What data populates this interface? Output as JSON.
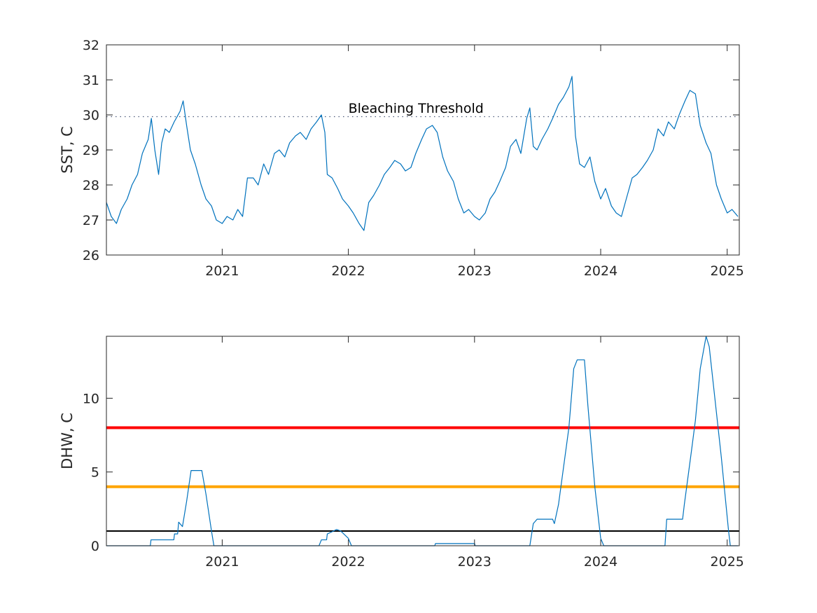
{
  "chart_data": [
    {
      "type": "line",
      "xlabel": "",
      "ylabel": "SST, C",
      "xlim": [
        "2020-02-01",
        "2025-02-05"
      ],
      "ylim": [
        26,
        32
      ],
      "x_ticks": [
        "2021",
        "2022",
        "2023",
        "2024",
        "2025"
      ],
      "y_ticks": [
        "26",
        "27",
        "28",
        "29",
        "30",
        "31",
        "32"
      ],
      "grid": false,
      "annotations": [
        {
          "text": "Bleaching Threshold",
          "x": "2022-01-01",
          "y": 30.2
        }
      ],
      "reference_lines": [
        {
          "y": 29.95,
          "style": "dotted",
          "color": "#4a5a7a"
        }
      ],
      "series_color": "#0072BD",
      "x": [
        "2020-02-01",
        "2020-02-15",
        "2020-03-01",
        "2020-03-15",
        "2020-04-01",
        "2020-04-15",
        "2020-05-01",
        "2020-05-15",
        "2020-06-01",
        "2020-06-10",
        "2020-06-20",
        "2020-07-01",
        "2020-07-10",
        "2020-07-20",
        "2020-08-01",
        "2020-08-15",
        "2020-09-01",
        "2020-09-10",
        "2020-09-20",
        "2020-10-01",
        "2020-10-15",
        "2020-11-01",
        "2020-11-15",
        "2020-12-01",
        "2020-12-15",
        "2021-01-01",
        "2021-01-15",
        "2021-02-01",
        "2021-02-15",
        "2021-03-01",
        "2021-03-15",
        "2021-04-01",
        "2021-04-15",
        "2021-05-01",
        "2021-05-15",
        "2021-06-01",
        "2021-06-15",
        "2021-07-01",
        "2021-07-15",
        "2021-08-01",
        "2021-08-15",
        "2021-09-01",
        "2021-09-15",
        "2021-10-01",
        "2021-10-15",
        "2021-10-25",
        "2021-11-01",
        "2021-11-15",
        "2021-12-01",
        "2021-12-15",
        "2022-01-01",
        "2022-01-15",
        "2022-02-01",
        "2022-02-15",
        "2022-03-01",
        "2022-03-15",
        "2022-04-01",
        "2022-04-15",
        "2022-05-01",
        "2022-05-15",
        "2022-06-01",
        "2022-06-15",
        "2022-07-01",
        "2022-07-15",
        "2022-08-01",
        "2022-08-15",
        "2022-09-01",
        "2022-09-15",
        "2022-10-01",
        "2022-10-15",
        "2022-11-01",
        "2022-11-15",
        "2022-12-01",
        "2022-12-15",
        "2023-01-01",
        "2023-01-15",
        "2023-02-01",
        "2023-02-15",
        "2023-03-01",
        "2023-03-15",
        "2023-04-01",
        "2023-04-15",
        "2023-05-01",
        "2023-05-15",
        "2023-06-01",
        "2023-06-10",
        "2023-06-20",
        "2023-07-01",
        "2023-07-15",
        "2023-08-01",
        "2023-08-15",
        "2023-09-01",
        "2023-09-15",
        "2023-10-01",
        "2023-10-10",
        "2023-10-20",
        "2023-11-01",
        "2023-11-15",
        "2023-12-01",
        "2023-12-15",
        "2024-01-01",
        "2024-01-15",
        "2024-02-01",
        "2024-02-15",
        "2024-03-01",
        "2024-03-15",
        "2024-04-01",
        "2024-04-15",
        "2024-05-01",
        "2024-05-15",
        "2024-06-01",
        "2024-06-15",
        "2024-07-01",
        "2024-07-15",
        "2024-08-01",
        "2024-08-15",
        "2024-09-01",
        "2024-09-15",
        "2024-10-01",
        "2024-10-15",
        "2024-11-01",
        "2024-11-15",
        "2024-12-01",
        "2024-12-15",
        "2025-01-01",
        "2025-01-15",
        "2025-02-01"
      ],
      "y": [
        27.5,
        27.1,
        26.9,
        27.3,
        27.6,
        28.0,
        28.3,
        28.9,
        29.3,
        29.9,
        29.0,
        28.3,
        29.2,
        29.6,
        29.5,
        29.8,
        30.1,
        30.4,
        29.7,
        29.0,
        28.6,
        28.0,
        27.6,
        27.4,
        27.0,
        26.9,
        27.1,
        27.0,
        27.3,
        27.1,
        28.2,
        28.2,
        28.0,
        28.6,
        28.3,
        28.9,
        29.0,
        28.8,
        29.2,
        29.4,
        29.5,
        29.3,
        29.6,
        29.8,
        30.0,
        29.5,
        28.3,
        28.2,
        27.9,
        27.6,
        27.4,
        27.2,
        26.9,
        26.7,
        27.5,
        27.7,
        28.0,
        28.3,
        28.5,
        28.7,
        28.6,
        28.4,
        28.5,
        28.9,
        29.3,
        29.6,
        29.7,
        29.5,
        28.8,
        28.4,
        28.1,
        27.6,
        27.2,
        27.3,
        27.1,
        27.0,
        27.2,
        27.6,
        27.8,
        28.1,
        28.5,
        29.1,
        29.3,
        28.9,
        29.9,
        30.2,
        29.1,
        29.0,
        29.3,
        29.6,
        29.9,
        30.3,
        30.5,
        30.8,
        31.1,
        29.4,
        28.6,
        28.5,
        28.8,
        28.1,
        27.6,
        27.9,
        27.4,
        27.2,
        27.1,
        27.6,
        28.2,
        28.3,
        28.5,
        28.7,
        29.0,
        29.6,
        29.4,
        29.8,
        29.6,
        30.0,
        30.4,
        30.7,
        30.6,
        29.7,
        29.2,
        28.9,
        28.0,
        27.6,
        27.2,
        27.3,
        27.1
      ]
    },
    {
      "type": "line",
      "xlabel": "",
      "ylabel": "DHW, C",
      "xlim": [
        "2020-02-01",
        "2025-02-05"
      ],
      "ylim": [
        0,
        14.2
      ],
      "x_ticks": [
        "2021",
        "2022",
        "2023",
        "2024",
        "2025"
      ],
      "y_ticks": [
        "0",
        "5",
        "10"
      ],
      "grid": false,
      "reference_lines": [
        {
          "y": 8,
          "color": "#ff0000"
        },
        {
          "y": 4,
          "color": "#ffa500"
        },
        {
          "y": 1,
          "color": "#000000"
        }
      ],
      "series_color": "#0072BD",
      "x": [
        "2020-02-01",
        "2020-06-07",
        "2020-06-09",
        "2020-08-14",
        "2020-08-16",
        "2020-08-25",
        "2020-08-28",
        "2020-09-08",
        "2020-09-20",
        "2020-10-03",
        "2020-10-10",
        "2020-11-03",
        "2020-11-15",
        "2020-12-01",
        "2020-12-08",
        "2021-10-08",
        "2021-10-15",
        "2021-10-30",
        "2021-11-01",
        "2021-11-28",
        "2021-12-10",
        "2022-01-01",
        "2022-01-10",
        "2022-09-08",
        "2022-09-10",
        "2023-01-01",
        "2023-01-03",
        "2023-06-10",
        "2023-06-20",
        "2023-07-01",
        "2023-07-05",
        "2023-08-15",
        "2023-08-20",
        "2023-09-01",
        "2023-10-01",
        "2023-10-15",
        "2023-10-25",
        "2023-11-15",
        "2023-11-25",
        "2023-12-15",
        "2024-01-01",
        "2024-01-10",
        "2024-07-05",
        "2024-07-10",
        "2024-08-25",
        "2024-08-30",
        "2024-09-20",
        "2024-10-01",
        "2024-10-15",
        "2024-11-01",
        "2024-11-10",
        "2024-12-01",
        "2024-12-15",
        "2025-01-05",
        "2025-01-10",
        "2025-02-01"
      ],
      "y": [
        0,
        0,
        0.4,
        0.4,
        0.8,
        0.8,
        1.6,
        1.3,
        3.0,
        5.1,
        5.1,
        5.1,
        3.5,
        1.0,
        0,
        0,
        0.4,
        0.4,
        0.8,
        1.1,
        1.0,
        0.5,
        0,
        0,
        0.15,
        0.15,
        0,
        0,
        1.5,
        1.8,
        1.8,
        1.8,
        1.5,
        2.8,
        8.0,
        12.0,
        12.6,
        12.6,
        9.5,
        4.0,
        0.5,
        0,
        0,
        1.8,
        1.8,
        2.8,
        6.5,
        8.5,
        12.0,
        14.2,
        13.5,
        9.0,
        6.0,
        1.0,
        0,
        0
      ]
    }
  ]
}
